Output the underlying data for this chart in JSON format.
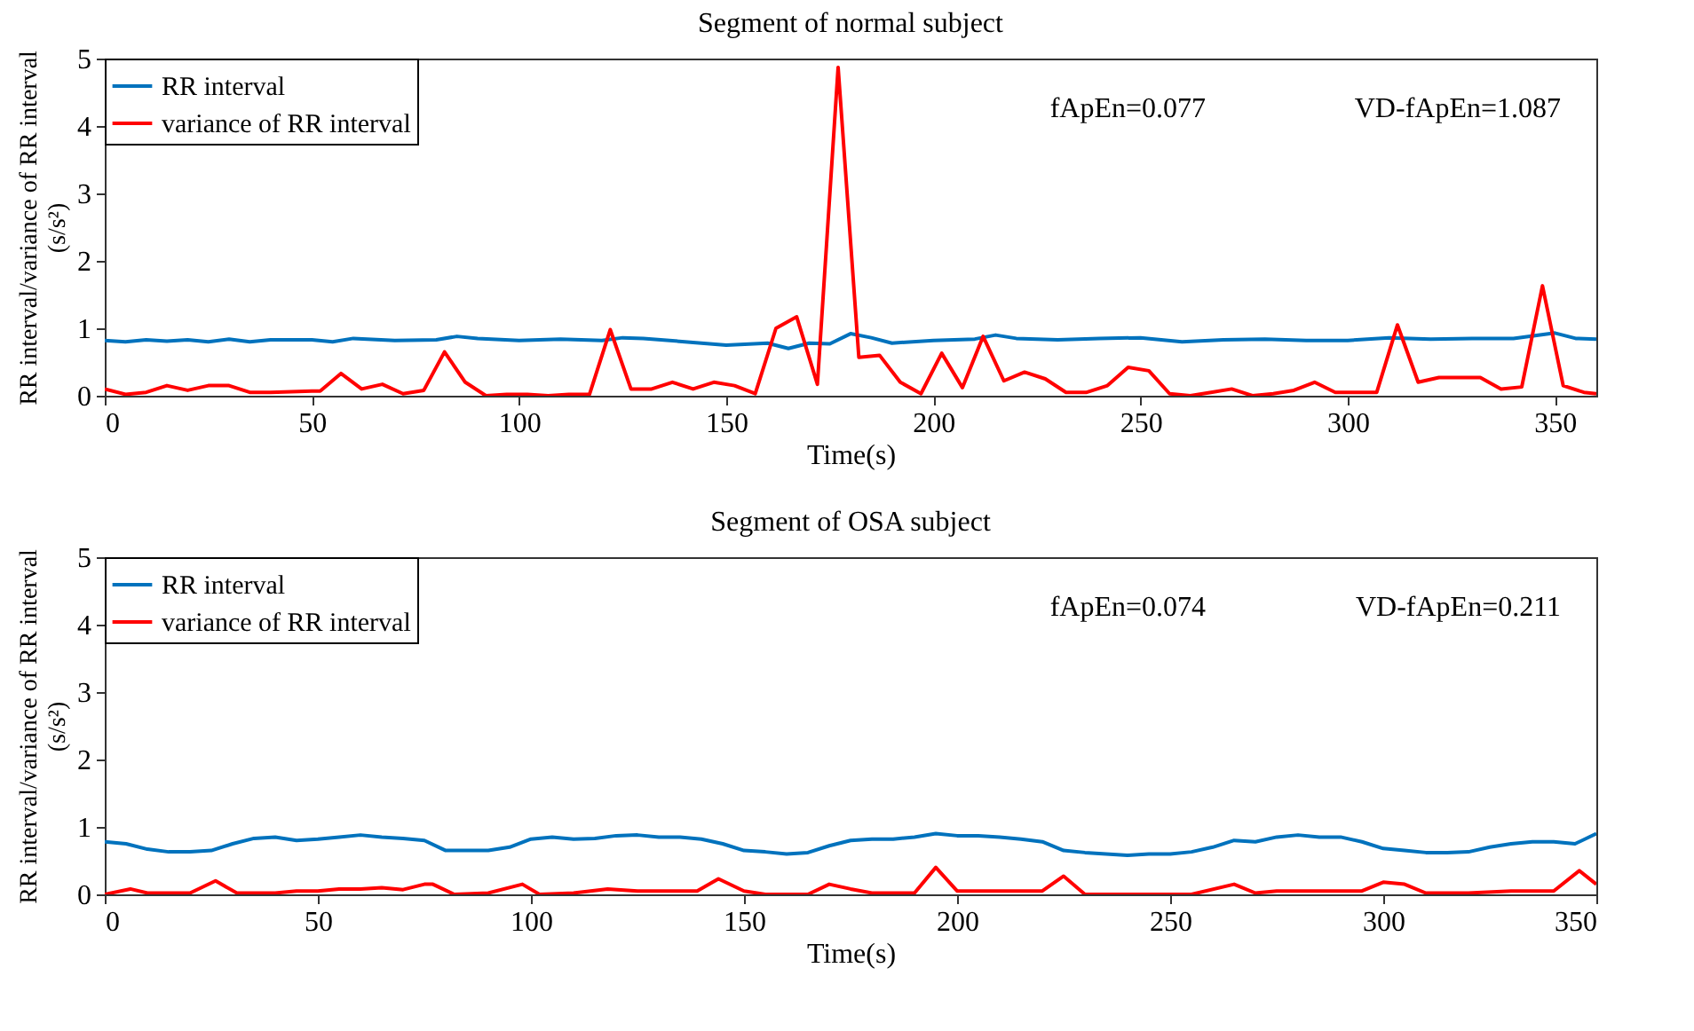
{
  "chart_data": [
    {
      "type": "line",
      "title": "Segment of normal subject",
      "xlabel": "Time(s)",
      "ylabel": "RR interval/variance of RR interval (s/s²)",
      "xlim": [
        0,
        360
      ],
      "xticks": [
        0,
        50,
        100,
        150,
        200,
        250,
        300,
        350
      ],
      "ylim": [
        0,
        5
      ],
      "yticks": [
        0,
        1,
        2,
        3,
        4,
        5
      ],
      "legend": "top left",
      "annotations": [
        "fApEn=0.077",
        "VD-fApEn=1.087"
      ],
      "series": [
        {
          "name": "RR interval",
          "color": "#0072bd",
          "x": [
            0,
            5,
            10,
            15,
            20,
            25,
            30,
            35,
            40,
            50,
            55,
            60,
            70,
            80,
            85,
            90,
            100,
            110,
            120,
            125,
            130,
            140,
            150,
            160,
            165,
            170,
            175,
            180,
            185,
            190,
            200,
            210,
            215,
            220,
            230,
            240,
            250,
            260,
            270,
            280,
            290,
            300,
            310,
            320,
            330,
            340,
            350,
            355,
            360
          ],
          "values": [
            0.82,
            0.8,
            0.83,
            0.81,
            0.83,
            0.8,
            0.84,
            0.8,
            0.83,
            0.83,
            0.8,
            0.85,
            0.82,
            0.83,
            0.88,
            0.85,
            0.82,
            0.84,
            0.82,
            0.86,
            0.85,
            0.8,
            0.75,
            0.78,
            0.7,
            0.78,
            0.77,
            0.92,
            0.86,
            0.78,
            0.82,
            0.84,
            0.9,
            0.85,
            0.83,
            0.85,
            0.86,
            0.8,
            0.83,
            0.84,
            0.82,
            0.82,
            0.86,
            0.84,
            0.85,
            0.85,
            0.93,
            0.85,
            0.84
          ]
        },
        {
          "name": "variance of RR interval",
          "color": "#ff0000",
          "x": [
            0,
            5,
            10,
            15,
            20,
            25,
            30,
            35,
            40,
            45,
            50,
            52,
            57,
            62,
            67,
            72,
            77,
            82,
            87,
            92,
            97,
            102,
            107,
            112,
            117,
            122,
            127,
            132,
            137,
            142,
            147,
            152,
            157,
            162,
            167,
            172,
            177,
            182,
            187,
            192,
            197,
            202,
            207,
            212,
            217,
            222,
            227,
            232,
            237,
            242,
            247,
            252,
            257,
            262,
            267,
            272,
            277,
            282,
            287,
            292,
            297,
            302,
            307,
            312,
            317,
            322,
            327,
            332,
            337,
            342,
            347,
            352,
            357,
            360
          ],
          "values": [
            0.1,
            0.02,
            0.05,
            0.15,
            0.08,
            0.15,
            0.15,
            0.05,
            0.05,
            0.06,
            0.07,
            0.07,
            0.33,
            0.1,
            0.17,
            0.03,
            0.08,
            0.65,
            0.2,
            0.0,
            0.02,
            0.02,
            0.0,
            0.02,
            0.02,
            0.98,
            0.1,
            0.1,
            0.2,
            0.1,
            0.2,
            0.15,
            0.03,
            1.0,
            1.17,
            0.17,
            4.87,
            0.57,
            0.6,
            0.2,
            0.03,
            0.63,
            0.12,
            0.88,
            0.22,
            0.35,
            0.25,
            0.05,
            0.05,
            0.15,
            0.42,
            0.37,
            0.03,
            0.0,
            0.05,
            0.1,
            0.0,
            0.03,
            0.08,
            0.2,
            0.05,
            0.05,
            0.05,
            1.05,
            0.2,
            0.27,
            0.27,
            0.27,
            0.1,
            0.13,
            1.63,
            0.15,
            0.05,
            0.03
          ]
        }
      ]
    },
    {
      "type": "line",
      "title": "Segment of OSA subject",
      "xlabel": "Time(s)",
      "ylabel": "RR interval/variance of RR interval (s/s²)",
      "xlim": [
        0,
        350
      ],
      "xticks": [
        0,
        50,
        100,
        150,
        200,
        250,
        300,
        350
      ],
      "ylim": [
        0,
        5
      ],
      "yticks": [
        0,
        1,
        2,
        3,
        4,
        5
      ],
      "legend": "top left",
      "annotations": [
        "fApEn=0.074",
        "VD-fApEn=0.211"
      ],
      "series": [
        {
          "name": "RR interval",
          "color": "#0072bd",
          "x": [
            0,
            5,
            10,
            15,
            20,
            25,
            30,
            35,
            40,
            45,
            50,
            55,
            60,
            65,
            70,
            75,
            80,
            85,
            90,
            95,
            100,
            105,
            110,
            115,
            120,
            125,
            130,
            135,
            140,
            145,
            150,
            155,
            160,
            165,
            170,
            175,
            180,
            185,
            190,
            195,
            200,
            205,
            210,
            215,
            220,
            225,
            230,
            235,
            240,
            245,
            250,
            255,
            260,
            265,
            270,
            275,
            280,
            285,
            290,
            295,
            300,
            305,
            310,
            315,
            320,
            325,
            330,
            335,
            340,
            345,
            350
          ],
          "values": [
            0.78,
            0.75,
            0.67,
            0.63,
            0.63,
            0.65,
            0.75,
            0.83,
            0.85,
            0.8,
            0.82,
            0.85,
            0.88,
            0.85,
            0.83,
            0.8,
            0.65,
            0.65,
            0.65,
            0.7,
            0.82,
            0.85,
            0.82,
            0.83,
            0.87,
            0.88,
            0.85,
            0.85,
            0.82,
            0.75,
            0.65,
            0.63,
            0.6,
            0.62,
            0.72,
            0.8,
            0.82,
            0.82,
            0.85,
            0.9,
            0.87,
            0.87,
            0.85,
            0.82,
            0.78,
            0.65,
            0.62,
            0.6,
            0.58,
            0.6,
            0.6,
            0.63,
            0.7,
            0.8,
            0.78,
            0.85,
            0.88,
            0.85,
            0.85,
            0.78,
            0.68,
            0.65,
            0.62,
            0.62,
            0.63,
            0.7,
            0.75,
            0.78,
            0.78,
            0.75,
            0.9
          ]
        },
        {
          "name": "variance of RR interval",
          "color": "#ff0000",
          "x": [
            0,
            6,
            10,
            20,
            26,
            31,
            40,
            45,
            50,
            55,
            60,
            65,
            70,
            75,
            77,
            82,
            90,
            98,
            102,
            110,
            118,
            125,
            135,
            139,
            144,
            150,
            155,
            165,
            170,
            175,
            180,
            190,
            195,
            200,
            210,
            220,
            225,
            230,
            255,
            265,
            270,
            275,
            285,
            295,
            300,
            305,
            310,
            320,
            330,
            340,
            346,
            350
          ],
          "values": [
            0.0,
            0.08,
            0.02,
            0.02,
            0.2,
            0.02,
            0.02,
            0.05,
            0.05,
            0.08,
            0.08,
            0.1,
            0.07,
            0.15,
            0.15,
            0.0,
            0.02,
            0.15,
            0.0,
            0.02,
            0.08,
            0.05,
            0.05,
            0.05,
            0.23,
            0.05,
            0.0,
            0.0,
            0.15,
            0.08,
            0.02,
            0.02,
            0.4,
            0.05,
            0.05,
            0.05,
            0.27,
            0.0,
            0.0,
            0.15,
            0.02,
            0.05,
            0.05,
            0.05,
            0.18,
            0.15,
            0.02,
            0.02,
            0.05,
            0.05,
            0.35,
            0.15
          ]
        }
      ]
    }
  ]
}
